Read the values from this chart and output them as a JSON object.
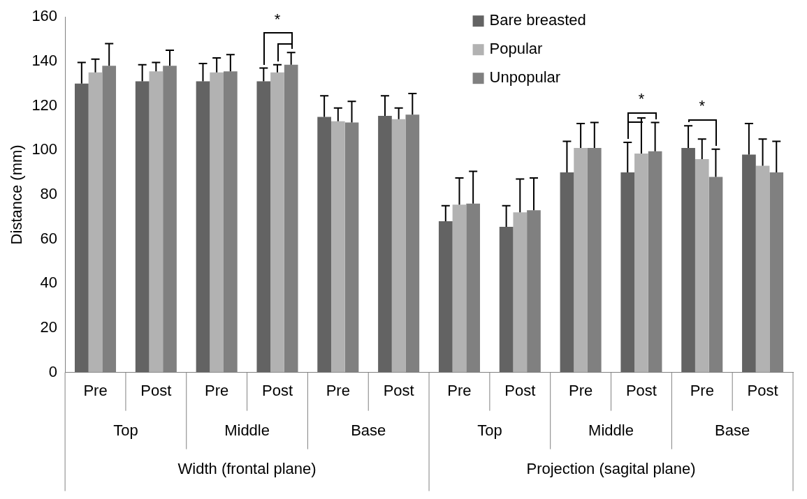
{
  "chart_data": {
    "type": "bar",
    "ylabel": "Distance (mm)",
    "categories": [
      "Pre",
      "Post",
      "Pre",
      "Post",
      "Pre",
      "Post",
      "Pre",
      "Post",
      "Pre",
      "Post",
      "Pre",
      "Post"
    ],
    "series": [
      {
        "name": "Bare breasted",
        "color": "#636363",
        "values": [
          130,
          131,
          131,
          131,
          115,
          115.5,
          68,
          65.5,
          90,
          90,
          101,
          98
        ],
        "errors": [
          [
            130,
            139.5
          ],
          [
            131,
            138.5
          ],
          [
            131,
            139
          ],
          [
            131,
            137
          ],
          [
            115,
            124.5
          ],
          [
            115.5,
            124.5
          ],
          [
            68,
            75
          ],
          [
            65.5,
            75
          ],
          [
            90,
            104
          ],
          [
            90,
            103.5
          ],
          [
            101,
            111
          ],
          [
            98,
            112
          ]
        ]
      },
      {
        "name": "Popular",
        "color": "#b2b2b2",
        "values": [
          135,
          135.5,
          135,
          135,
          113,
          114,
          75.5,
          72,
          101,
          98.5,
          96,
          93
        ],
        "errors": [
          [
            135,
            141
          ],
          [
            135.5,
            139.5
          ],
          [
            135,
            141.5
          ],
          [
            135,
            138.5
          ],
          [
            113,
            119
          ],
          [
            114,
            119
          ],
          [
            75.5,
            87.5
          ],
          [
            72,
            87
          ],
          [
            101,
            112
          ],
          [
            98.5,
            114.5
          ],
          [
            96,
            105
          ],
          [
            93,
            105
          ]
        ]
      },
      {
        "name": "Unpopular",
        "color": "#808080",
        "values": [
          138,
          138,
          135.5,
          138.5,
          112.5,
          116,
          76,
          73,
          101,
          99.5,
          88,
          90
        ],
        "errors": [
          [
            138,
            148
          ],
          [
            138,
            145
          ],
          [
            135.5,
            143
          ],
          [
            138.5,
            144
          ],
          [
            112.5,
            122
          ],
          [
            116,
            125.5
          ],
          [
            76,
            90.5
          ],
          [
            73,
            87.5
          ],
          [
            101,
            112.5
          ],
          [
            99.5,
            112.5
          ],
          [
            88,
            100.5
          ],
          [
            90,
            104
          ]
        ]
      }
    ],
    "ylim": [
      0,
      160
    ],
    "yticks": [
      0,
      20,
      40,
      60,
      80,
      100,
      120,
      140,
      160
    ],
    "grid": false,
    "legend": "top right",
    "annotations": [
      "Top",
      "Middle",
      "Base",
      "Top",
      "Middle",
      "Base",
      "Width (frontal plane)",
      "Projection (sagital plane)",
      "*",
      "*",
      "*"
    ]
  }
}
